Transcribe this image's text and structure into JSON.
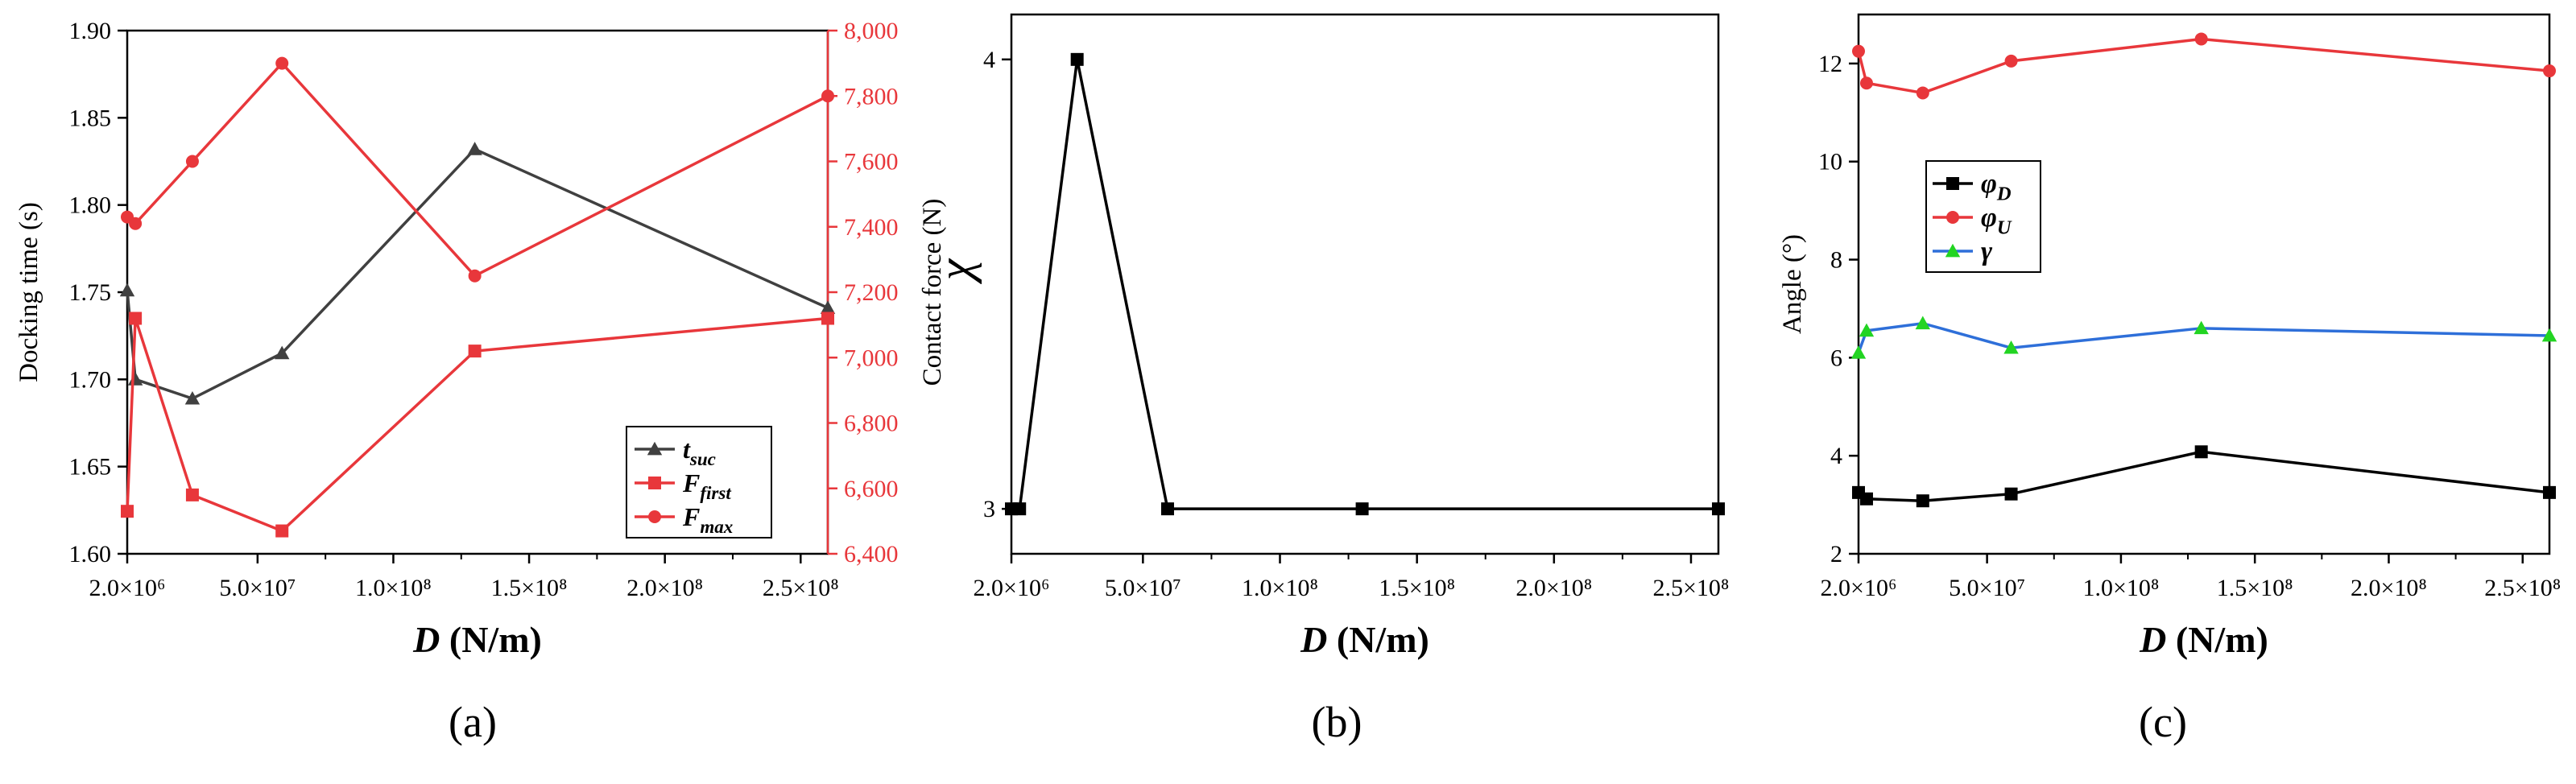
{
  "chart_data": [
    {
      "type": "line",
      "panel_label": "(a)",
      "xlabel": {
        "var": "D",
        "units": "(N/m)"
      },
      "xlim": [
        2000000,
        260000000
      ],
      "x_ticks": [
        2000000,
        50000000,
        100000000,
        150000000,
        200000000,
        250000000
      ],
      "x_tick_labels": [
        "2.0×10⁶",
        "5.0×10⁷",
        "1.0×10⁸",
        "1.5×10⁸",
        "2.0×10⁸",
        "2.5×10⁸"
      ],
      "y_left": {
        "label": "Docking time (s)",
        "lim": [
          1.6,
          1.9
        ],
        "ticks": [
          1.6,
          1.65,
          1.7,
          1.75,
          1.8,
          1.85,
          1.9
        ],
        "tick_labels": [
          "1.60",
          "1.65",
          "1.70",
          "1.75",
          "1.80",
          "1.85",
          "1.90"
        ]
      },
      "y_right": {
        "label": "Contact force (N)",
        "lim": [
          6400,
          8000
        ],
        "ticks": [
          6400,
          6600,
          6800,
          7000,
          7200,
          7400,
          7600,
          7800,
          8000
        ],
        "tick_labels": [
          "6,400",
          "6,600",
          "6,800",
          "7,000",
          "7,200",
          "7,400",
          "7,600",
          "7,800",
          "8,000"
        ]
      },
      "legend_position": "bottom-right",
      "x": [
        2000000,
        5000000,
        26000000,
        59000000,
        130000000,
        260000000
      ],
      "series": [
        {
          "name": "t",
          "sub": "suc",
          "axis": "left",
          "color": "#404040",
          "marker": "triangle",
          "values": [
            1.751,
            1.7,
            1.689,
            1.715,
            1.832,
            1.741
          ]
        },
        {
          "name": "F",
          "sub": "first",
          "axis": "right",
          "color": "#e8373b",
          "marker": "square",
          "values": [
            6530,
            7120,
            6580,
            6470,
            7020,
            7120
          ]
        },
        {
          "name": "F",
          "sub": "max",
          "axis": "right",
          "color": "#e8373b",
          "marker": "circle",
          "values": [
            7430,
            7410,
            7600,
            7900,
            7250,
            7800
          ]
        }
      ]
    },
    {
      "type": "line",
      "panel_label": "(b)",
      "xlabel": {
        "var": "D",
        "units": "(N/m)"
      },
      "ylabel": "χ",
      "xlim": [
        2000000,
        260000000
      ],
      "x_ticks": [
        2000000,
        50000000,
        100000000,
        150000000,
        200000000,
        250000000
      ],
      "x_tick_labels": [
        "2.0×10⁶",
        "5.0×10⁷",
        "1.0×10⁸",
        "1.5×10⁸",
        "2.0×10⁸",
        "2.5×10⁸"
      ],
      "ylim": [
        2.9,
        4.1
      ],
      "y_ticks": [
        3,
        4
      ],
      "y_tick_labels": [
        "3",
        "4"
      ],
      "x": [
        2000000,
        5000000,
        26000000,
        59000000,
        130000000,
        260000000
      ],
      "series": [
        {
          "name": "",
          "color": "#000000",
          "marker": "square",
          "values": [
            3,
            3,
            4,
            3,
            3,
            3
          ]
        }
      ]
    },
    {
      "type": "line",
      "panel_label": "(c)",
      "xlabel": {
        "var": "D",
        "units": "(N/m)"
      },
      "ylabel": "Angle (°)",
      "xlim": [
        2000000,
        260000000
      ],
      "x_ticks": [
        2000000,
        50000000,
        100000000,
        150000000,
        200000000,
        250000000
      ],
      "x_tick_labels": [
        "2.0×10⁶",
        "5.0×10⁷",
        "1.0×10⁸",
        "1.5×10⁸",
        "2.0×10⁸",
        "2.5×10⁸"
      ],
      "ylim": [
        2,
        13
      ],
      "y_ticks": [
        2,
        4,
        6,
        8,
        10,
        12
      ],
      "y_tick_labels": [
        "2",
        "4",
        "6",
        "8",
        "10",
        "12"
      ],
      "legend_position": "upper-left",
      "x": [
        2000000,
        5000000,
        26000000,
        59000000,
        130000000,
        260000000
      ],
      "series": [
        {
          "name": "φ",
          "sub": "D",
          "color": "#000000",
          "marker": "square",
          "values": [
            3.25,
            3.12,
            3.08,
            3.22,
            4.08,
            3.25
          ]
        },
        {
          "name": "φ",
          "sub": "U",
          "color": "#e8373b",
          "marker": "circle",
          "values": [
            12.25,
            11.6,
            11.4,
            12.05,
            12.5,
            11.85
          ]
        },
        {
          "name": "γ",
          "color": "#2e6fd9",
          "marker": "triangle",
          "marker_color": "#22d422",
          "values": [
            6.1,
            6.55,
            6.7,
            6.2,
            6.6,
            6.45
          ]
        }
      ]
    }
  ]
}
